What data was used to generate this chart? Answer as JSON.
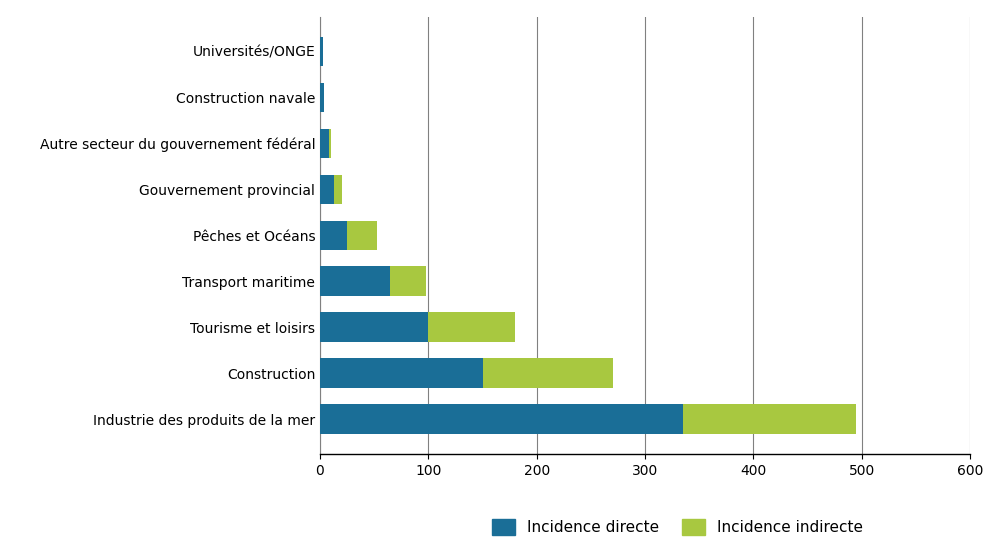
{
  "categories": [
    "Industrie des produits de la mer",
    "Construction",
    "Tourisme et loisirs",
    "Transport maritime",
    "Pêches et Océans",
    "Gouvernement provincial",
    "Autre secteur du gouvernement fédéral",
    "Construction navale",
    "Universités/ONGE"
  ],
  "direct": [
    335,
    150,
    100,
    65,
    25,
    13,
    8,
    4,
    3
  ],
  "indirect": [
    160,
    120,
    80,
    33,
    28,
    7,
    2,
    0,
    0
  ],
  "direct_color": "#1a6e97",
  "indirect_color": "#a8c840",
  "background_color": "#ffffff",
  "xlim": [
    0,
    600
  ],
  "xticks": [
    0,
    100,
    200,
    300,
    400,
    500,
    600
  ],
  "legend_labels": [
    "Incidence directe",
    "Incidence indirecte"
  ],
  "bar_height": 0.65,
  "figsize": [
    10.0,
    5.54
  ],
  "dpi": 100,
  "grid_color": "#808080",
  "label_fontsize": 10,
  "tick_fontsize": 10,
  "legend_fontsize": 11
}
